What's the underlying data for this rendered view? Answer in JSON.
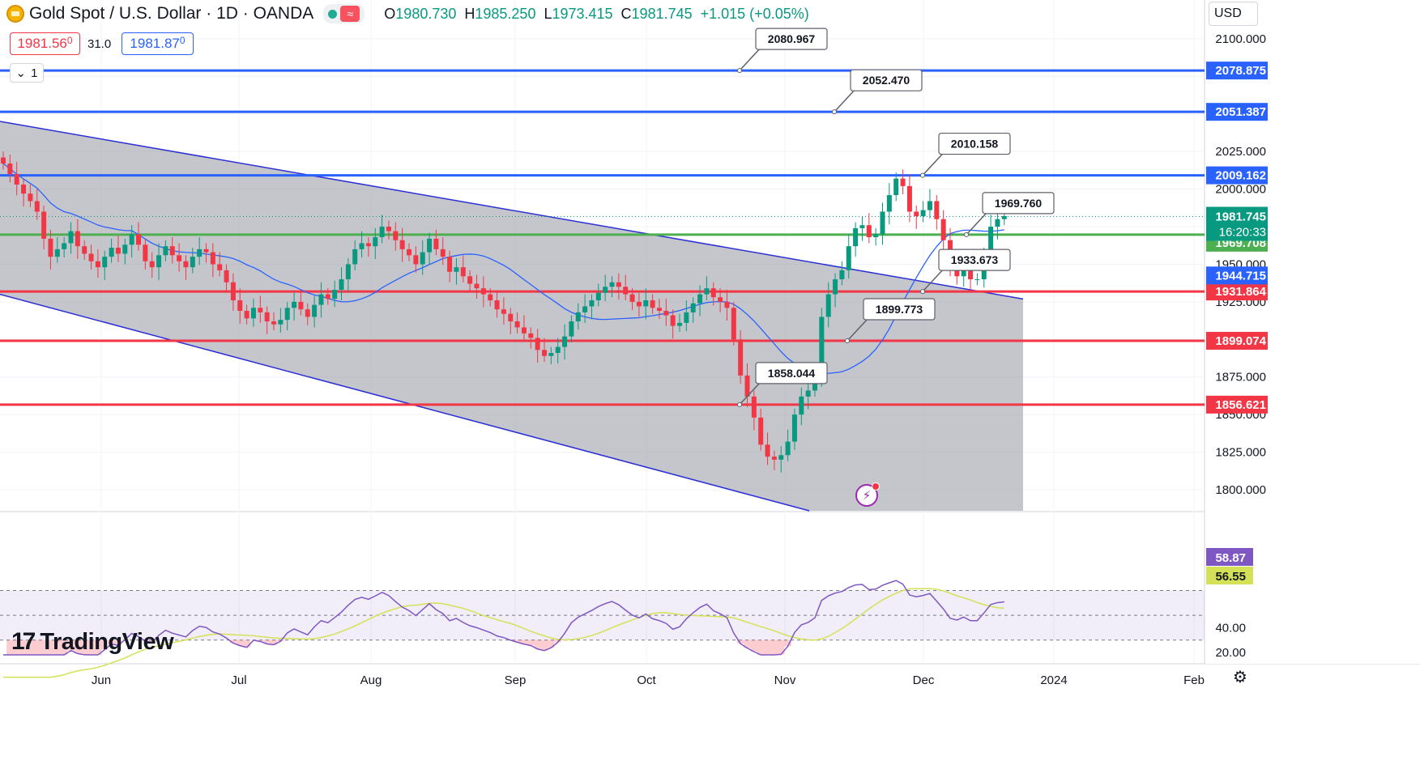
{
  "header": {
    "symbol_title": "Gold Spot / U.S. Dollar · 1D · OANDA",
    "wave_icon": "≈",
    "ohlc": {
      "o_label": "O",
      "o": "1980.730",
      "h_label": "H",
      "h": "1985.250",
      "l_label": "L",
      "l": "1973.415",
      "c_label": "C",
      "c": "1981.745",
      "change": "+1.015 (+0.05%)"
    },
    "sell_price": "1981.56",
    "sell_price_small": "0",
    "spread": "31.0",
    "buy_price": "1981.87",
    "buy_price_small": "0",
    "indicators_count": "1",
    "currency": "USD"
  },
  "brand": {
    "logo_text": "TradingView",
    "logo_mark": "17"
  },
  "colors": {
    "up": "#089981",
    "down": "#f23645",
    "channel": "#2b2fd6",
    "support_green": "#4caf50",
    "resistance_blue": "#2962ff",
    "rsi": "#7e57c2",
    "rsi_ma": "#d4e157",
    "ma": "#2962ff"
  },
  "chart_data": {
    "type": "candlestick",
    "price_axis": {
      "ticks": [
        1800,
        1825,
        1850,
        1875,
        1900,
        1925,
        1950,
        1975,
        2000,
        2025,
        2050,
        2075,
        2100
      ],
      "tick_labels_shown": [
        "1800.000",
        "1825.000",
        "1850.000",
        "1875.000",
        "1925.000",
        "1950.000",
        "2000.000",
        "2025.000",
        "2100.000"
      ]
    },
    "time_axis": {
      "labels": [
        "Jun",
        "Jul",
        "Aug",
        "Sep",
        "Oct",
        "Nov",
        "Dec",
        "2024",
        "Feb"
      ]
    },
    "last_price": "1981.745",
    "countdown": "16:20:33",
    "horizontal_levels": [
      {
        "value": 2078.875,
        "label": "2078.875",
        "kind": "resistance",
        "callout": "2080.967"
      },
      {
        "value": 2051.387,
        "label": "2051.387",
        "kind": "resistance",
        "callout": "2052.470"
      },
      {
        "value": 2009.162,
        "label": "2009.162",
        "kind": "resistance",
        "callout": "2010.158"
      },
      {
        "value": 1969.708,
        "label": "1969.708",
        "kind": "pivot",
        "callout": "1969.760"
      },
      {
        "value": 1931.864,
        "label": "1931.864",
        "kind": "support",
        "callout": "1933.673"
      },
      {
        "value": 1899.074,
        "label": "1899.074",
        "kind": "support",
        "callout": "1899.773"
      },
      {
        "value": 1856.621,
        "label": "1856.621",
        "kind": "support",
        "callout": "1858.044"
      }
    ],
    "ma_label": "1944.715",
    "rsi": {
      "value": "58.87",
      "ma_value": "56.55",
      "ticks_shown": [
        "40.00",
        "20.00"
      ],
      "upper_band": 70,
      "lower_band": 30
    },
    "closes": [
      2017,
      2010,
      2003,
      1997,
      1992,
      1985,
      1967,
      1955,
      1960,
      1964,
      1972,
      1962,
      1957,
      1952,
      1948,
      1955,
      1961,
      1957,
      1963,
      1970,
      1963,
      1952,
      1948,
      1956,
      1962,
      1956,
      1952,
      1948,
      1955,
      1960,
      1958,
      1950,
      1946,
      1938,
      1926,
      1919,
      1914,
      1921,
      1918,
      1912,
      1910,
      1913,
      1921,
      1925,
      1920,
      1915,
      1923,
      1930,
      1927,
      1933,
      1940,
      1950,
      1960,
      1964,
      1962,
      1968,
      1975,
      1972,
      1966,
      1960,
      1956,
      1950,
      1958,
      1967,
      1960,
      1955,
      1945,
      1948,
      1942,
      1937,
      1934,
      1930,
      1926,
      1920,
      1917,
      1912,
      1908,
      1904,
      1901,
      1893,
      1889,
      1891,
      1895,
      1902,
      1912,
      1918,
      1922,
      1926,
      1931,
      1935,
      1938,
      1935,
      1930,
      1925,
      1922,
      1926,
      1921,
      1919,
      1916,
      1909,
      1911,
      1918,
      1924,
      1930,
      1934,
      1928,
      1925,
      1921,
      1900,
      1876,
      1862,
      1848,
      1830,
      1822,
      1820,
      1823,
      1832,
      1850,
      1862,
      1866,
      1874,
      1915,
      1930,
      1940,
      1946,
      1962,
      1974,
      1976,
      1968,
      1970,
      1985,
      1996,
      2007,
      2002,
      1985,
      1982,
      1986,
      1992,
      1980,
      1966,
      1946,
      1942,
      1948,
      1940,
      1940,
      1955,
      1975,
      1980,
      1982
    ]
  }
}
